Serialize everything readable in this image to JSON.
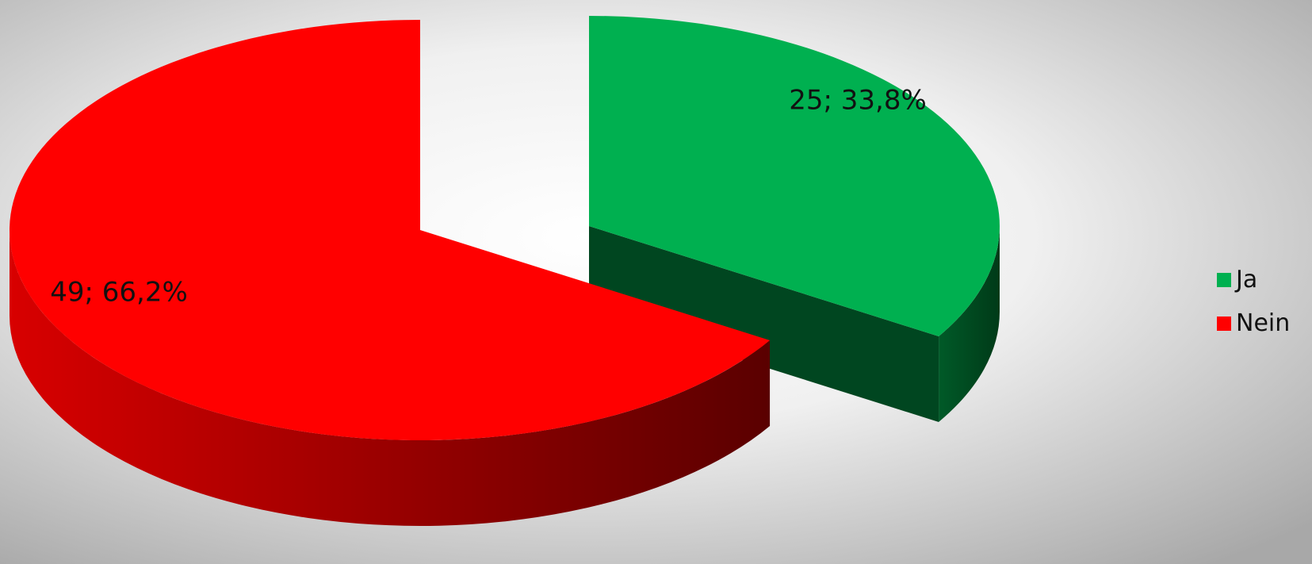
{
  "chart_data": {
    "type": "pie",
    "three_d": true,
    "slices": [
      {
        "name": "Ja",
        "value": 25,
        "percent": 33.8,
        "label": "25; 33,8%",
        "color": "#00b050",
        "side_color": "#004620",
        "exploded": true
      },
      {
        "name": "Nein",
        "value": 49,
        "percent": 66.2,
        "label": "49; 66,2%",
        "color": "#ff0000",
        "side_color": "#b00000",
        "exploded": false
      }
    ],
    "legend": {
      "position": "right",
      "items": [
        "Ja",
        "Nein"
      ]
    },
    "background": {
      "center": "#ffffff",
      "edge": "#a8a8a8"
    }
  }
}
